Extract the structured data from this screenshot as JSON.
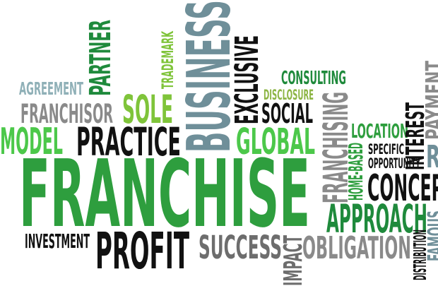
{
  "colors": {
    "green_dark": "#1f8a3c",
    "green_mid": "#2e9e3e",
    "green_light": "#4cc84a",
    "lime": "#7fc43a",
    "olive": "#8db545",
    "black": "#111111",
    "gray": "#8a8a8a",
    "gray_dark": "#6d6d6d",
    "blue_gray": "#6f8f99",
    "teal_gray": "#8fb0b7",
    "background": "#ffffff"
  },
  "words": {
    "franchise": "FRANCHISE",
    "business": "BUSINESS",
    "partner": "PARTNER",
    "trademark": "TRADEMARK",
    "agreement": "AGREEMENT",
    "franchisor": "FRANCHISOR",
    "sole": "SOLE",
    "model": "MODEL",
    "practice": "PRACTICE",
    "exclusive": "EXCLUSIVE",
    "consulting": "CONSULTING",
    "disclosure": "DISCLOSURE",
    "social": "SOCIAL",
    "global": "GLOBAL",
    "franchising": "FRANCHISING",
    "home_based": "HOME-BASED",
    "location": "LOCATION",
    "interest": "INTEREST",
    "payment": "PAYMENT",
    "specific": "SPECIFIC",
    "opportunity": "OPPORTUNITY",
    "ri": "RI",
    "concep": "CONCEP",
    "approach": "APPROACH",
    "investment": "INVESTMENT",
    "profit": "PROFIT",
    "success": "SUCCESS",
    "impact": "IMPACT",
    "obligation": "OBLIGATION",
    "distribution": "DISTRIBUTION",
    "famous": "FAMOUS"
  }
}
